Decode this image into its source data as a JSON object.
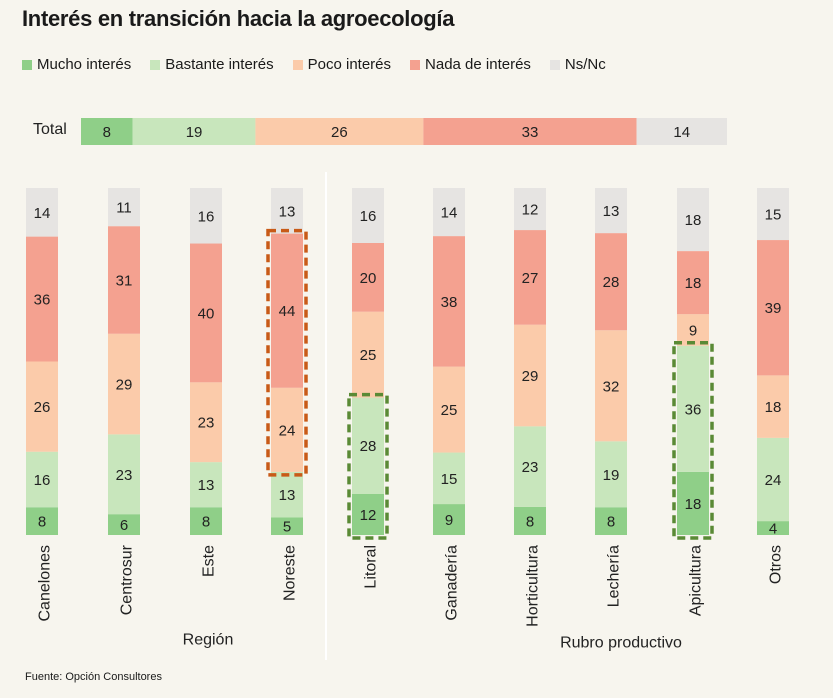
{
  "colors": {
    "background": "#f7f5ee",
    "mucho": "#8fcf88",
    "bastante": "#c8e6bc",
    "poco": "#fbcbaa",
    "nada": "#f4a190",
    "nsnc": "#e6e4e2",
    "highlight_region": "#c85a17",
    "highlight_rubro": "#5a8a35",
    "divider": "#ffffff"
  },
  "chart_data": {
    "type": "bar",
    "orientation": "stacked",
    "title": "Interés en transición hacia la agroecología",
    "source": "Fuente: Opción Consultores",
    "unit": "%",
    "legend": [
      {
        "key": "mucho",
        "label": "Mucho interés",
        "color_key": "mucho"
      },
      {
        "key": "bastante",
        "label": "Bastante interés",
        "color_key": "bastante"
      },
      {
        "key": "poco",
        "label": "Poco interés",
        "color_key": "poco"
      },
      {
        "key": "nada",
        "label": "Nada de interés",
        "color_key": "nada"
      },
      {
        "key": "nsnc",
        "label": "Ns/Nc",
        "color_key": "nsnc"
      }
    ],
    "total": {
      "label": "Total",
      "values": {
        "mucho": 8,
        "bastante": 19,
        "poco": 26,
        "nada": 33,
        "nsnc": 14
      }
    },
    "groups": [
      {
        "label": "Región",
        "categories": [
          {
            "label": "Canelones",
            "values": {
              "mucho": 8,
              "bastante": 16,
              "poco": 26,
              "nada": 36,
              "nsnc": 14
            }
          },
          {
            "label": "Centrosur",
            "values": {
              "mucho": 6,
              "bastante": 23,
              "poco": 29,
              "nada": 31,
              "nsnc": 11
            }
          },
          {
            "label": "Este",
            "values": {
              "mucho": 8,
              "bastante": 13,
              "poco": 23,
              "nada": 40,
              "nsnc": 16
            }
          },
          {
            "label": "Noreste",
            "values": {
              "mucho": 5,
              "bastante": 13,
              "poco": 24,
              "nada": 44,
              "nsnc": 13
            },
            "highlight": {
              "segments": [
                "poco",
                "nada"
              ],
              "color_key": "highlight_region"
            }
          }
        ]
      },
      {
        "label": "Rubro productivo",
        "categories": [
          {
            "label": "Litoral",
            "values": {
              "mucho": 12,
              "bastante": 28,
              "poco": 25,
              "nada": 20,
              "nsnc": 16
            },
            "highlight": {
              "segments": [
                "mucho",
                "bastante"
              ],
              "color_key": "highlight_rubro"
            }
          },
          {
            "label": "Ganadería",
            "values": {
              "mucho": 9,
              "bastante": 15,
              "poco": 25,
              "nada": 38,
              "nsnc": 14
            }
          },
          {
            "label": "Horticultura",
            "values": {
              "mucho": 8,
              "bastante": 23,
              "poco": 29,
              "nada": 27,
              "nsnc": 12
            }
          },
          {
            "label": "Lechería",
            "values": {
              "mucho": 8,
              "bastante": 19,
              "poco": 32,
              "nada": 28,
              "nsnc": 13
            }
          },
          {
            "label": "Apicultura",
            "values": {
              "mucho": 18,
              "bastante": 36,
              "poco": 9,
              "nada": 18,
              "nsnc": 18
            },
            "highlight": {
              "segments": [
                "mucho",
                "bastante"
              ],
              "color_key": "highlight_rubro"
            }
          },
          {
            "label": "Otros",
            "values": {
              "mucho": 4,
              "bastante": 24,
              "poco": 18,
              "nada": 39,
              "nsnc": 15
            }
          }
        ]
      }
    ],
    "stack_order": [
      "mucho",
      "bastante",
      "poco",
      "nada",
      "nsnc"
    ]
  }
}
